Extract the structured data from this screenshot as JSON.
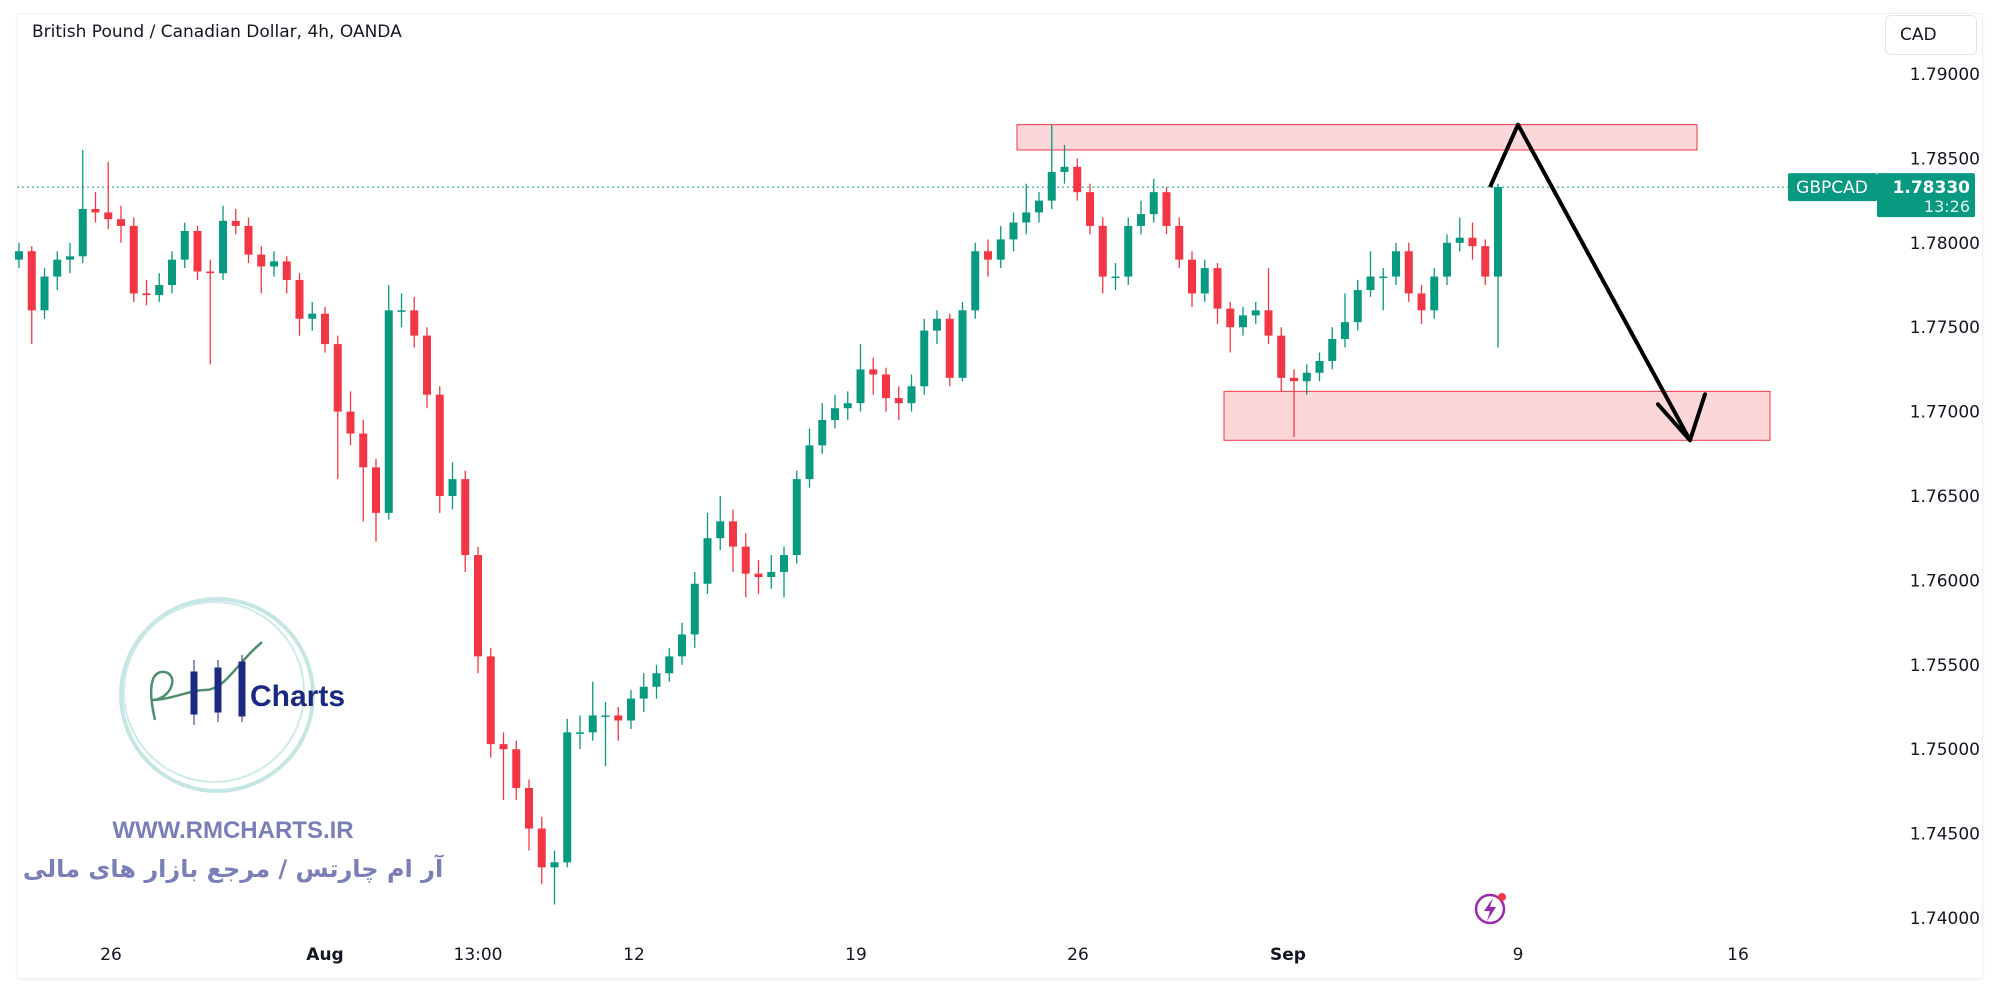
{
  "header": {
    "title": "British Pound / Canadian Dollar, 4h, OANDA",
    "currency_button": "CAD"
  },
  "price_badge": {
    "symbol": "GBPCAD",
    "price": "1.78330",
    "countdown": "13:26",
    "color": "#089981"
  },
  "watermark": {
    "logo_text": "RM Charts",
    "website": "WWW.RMCHARTS.IR",
    "tagline": "آر ام چارتس / مرجع بازار های مالی",
    "color": "#7b7fb8"
  },
  "icons": {
    "alert": "lightning-icon"
  },
  "chart_data": {
    "type": "candlestick",
    "title": "British Pound / Canadian Dollar, 4h, OANDA",
    "ylim": [
      1.7385,
      1.7925
    ],
    "yticks": [
      "1.79000",
      "1.78500",
      "1.78000",
      "1.77500",
      "1.77000",
      "1.76500",
      "1.76000",
      "1.75500",
      "1.75000",
      "1.74500",
      "1.74000"
    ],
    "xticks": [
      {
        "label": "26",
        "bold": false
      },
      {
        "label": "Aug",
        "bold": true
      },
      {
        "label": "13:00",
        "bold": false
      },
      {
        "label": "12",
        "bold": false
      },
      {
        "label": "19",
        "bold": false
      },
      {
        "label": "26",
        "bold": false
      },
      {
        "label": "Sep",
        "bold": true
      },
      {
        "label": "9",
        "bold": false
      },
      {
        "label": "16",
        "bold": false
      }
    ],
    "up_color": "#089981",
    "down_color": "#f23645",
    "last_price": 1.7833,
    "zones": [
      {
        "top": 1.787,
        "bottom": 1.7855
      },
      {
        "top": 1.7712,
        "bottom": 1.7683
      }
    ],
    "arrow_path_prices": [
      1.7833,
      1.787,
      1.7683
    ],
    "candles": [
      [
        1.779,
        1.78,
        1.7785,
        1.7795
      ],
      [
        1.7795,
        1.7798,
        1.774,
        1.776
      ],
      [
        1.776,
        1.7785,
        1.7755,
        1.778
      ],
      [
        1.778,
        1.7795,
        1.7772,
        1.779
      ],
      [
        1.779,
        1.78,
        1.7782,
        1.7792
      ],
      [
        1.7792,
        1.7855,
        1.7788,
        1.782
      ],
      [
        1.782,
        1.783,
        1.7812,
        1.7818
      ],
      [
        1.7818,
        1.7848,
        1.7808,
        1.7814
      ],
      [
        1.7814,
        1.7822,
        1.78,
        1.781
      ],
      [
        1.781,
        1.7815,
        1.7765,
        1.777
      ],
      [
        1.777,
        1.7778,
        1.7763,
        1.7769
      ],
      [
        1.7769,
        1.7782,
        1.7765,
        1.7775
      ],
      [
        1.7775,
        1.7795,
        1.777,
        1.779
      ],
      [
        1.779,
        1.7812,
        1.7785,
        1.7807
      ],
      [
        1.7807,
        1.781,
        1.7778,
        1.7783
      ],
      [
        1.7783,
        1.779,
        1.7728,
        1.7782
      ],
      [
        1.7782,
        1.7822,
        1.7778,
        1.7813
      ],
      [
        1.7813,
        1.782,
        1.7805,
        1.781
      ],
      [
        1.781,
        1.7815,
        1.7788,
        1.7793
      ],
      [
        1.7793,
        1.7798,
        1.777,
        1.7786
      ],
      [
        1.7786,
        1.7795,
        1.778,
        1.7789
      ],
      [
        1.7789,
        1.7792,
        1.777,
        1.7778
      ],
      [
        1.7778,
        1.7782,
        1.7745,
        1.7755
      ],
      [
        1.7755,
        1.7765,
        1.7748,
        1.7758
      ],
      [
        1.7758,
        1.7762,
        1.7735,
        1.774
      ],
      [
        1.774,
        1.7745,
        1.766,
        1.77
      ],
      [
        1.77,
        1.7712,
        1.768,
        1.7687
      ],
      [
        1.7687,
        1.7695,
        1.7635,
        1.7667
      ],
      [
        1.7667,
        1.7672,
        1.7623,
        1.764
      ],
      [
        1.764,
        1.7775,
        1.7636,
        1.776
      ],
      [
        1.776,
        1.777,
        1.775,
        1.776
      ],
      [
        1.776,
        1.7768,
        1.7738,
        1.7745
      ],
      [
        1.7745,
        1.775,
        1.7702,
        1.771
      ],
      [
        1.771,
        1.7715,
        1.764,
        1.765
      ],
      [
        1.765,
        1.767,
        1.7642,
        1.766
      ],
      [
        1.766,
        1.7665,
        1.7605,
        1.7615
      ],
      [
        1.7615,
        1.762,
        1.7545,
        1.7555
      ],
      [
        1.7555,
        1.756,
        1.7495,
        1.7503
      ],
      [
        1.7503,
        1.751,
        1.747,
        1.75
      ],
      [
        1.75,
        1.7505,
        1.747,
        1.7477
      ],
      [
        1.7477,
        1.7482,
        1.744,
        1.7453
      ],
      [
        1.7453,
        1.746,
        1.742,
        1.743
      ],
      [
        1.743,
        1.744,
        1.7408,
        1.7433
      ],
      [
        1.7433,
        1.7518,
        1.743,
        1.751
      ],
      [
        1.751,
        1.752,
        1.75,
        1.751
      ],
      [
        1.751,
        1.754,
        1.7505,
        1.752
      ],
      [
        1.752,
        1.7528,
        1.749,
        1.752
      ],
      [
        1.752,
        1.7525,
        1.7505,
        1.7517
      ],
      [
        1.7517,
        1.7535,
        1.7512,
        1.753
      ],
      [
        1.753,
        1.7545,
        1.7522,
        1.7537
      ],
      [
        1.7537,
        1.755,
        1.753,
        1.7545
      ],
      [
        1.7545,
        1.756,
        1.754,
        1.7555
      ],
      [
        1.7555,
        1.7575,
        1.755,
        1.7568
      ],
      [
        1.7568,
        1.7605,
        1.756,
        1.7598
      ],
      [
        1.7598,
        1.764,
        1.7592,
        1.7625
      ],
      [
        1.7625,
        1.765,
        1.7618,
        1.7635
      ],
      [
        1.7635,
        1.7642,
        1.7605,
        1.762
      ],
      [
        1.762,
        1.7628,
        1.759,
        1.7604
      ],
      [
        1.7604,
        1.7612,
        1.7592,
        1.7602
      ],
      [
        1.7602,
        1.7615,
        1.7595,
        1.7605
      ],
      [
        1.7605,
        1.762,
        1.759,
        1.7615
      ],
      [
        1.7615,
        1.7665,
        1.761,
        1.766
      ],
      [
        1.766,
        1.769,
        1.7655,
        1.768
      ],
      [
        1.768,
        1.7705,
        1.7675,
        1.7695
      ],
      [
        1.7695,
        1.771,
        1.769,
        1.7702
      ],
      [
        1.7702,
        1.7712,
        1.7695,
        1.7705
      ],
      [
        1.7705,
        1.774,
        1.77,
        1.7725
      ],
      [
        1.7725,
        1.7732,
        1.771,
        1.7722
      ],
      [
        1.7722,
        1.7726,
        1.77,
        1.7708
      ],
      [
        1.7708,
        1.7715,
        1.7695,
        1.7705
      ],
      [
        1.7705,
        1.7722,
        1.77,
        1.7715
      ],
      [
        1.7715,
        1.7755,
        1.771,
        1.7748
      ],
      [
        1.7748,
        1.776,
        1.774,
        1.7755
      ],
      [
        1.7755,
        1.7758,
        1.7715,
        1.772
      ],
      [
        1.772,
        1.7765,
        1.7718,
        1.776
      ],
      [
        1.776,
        1.78,
        1.7755,
        1.7795
      ],
      [
        1.7795,
        1.7802,
        1.778,
        1.779
      ],
      [
        1.779,
        1.781,
        1.7785,
        1.7802
      ],
      [
        1.7802,
        1.7818,
        1.7795,
        1.7812
      ],
      [
        1.7812,
        1.7835,
        1.7805,
        1.7818
      ],
      [
        1.7818,
        1.783,
        1.7812,
        1.7825
      ],
      [
        1.7825,
        1.787,
        1.782,
        1.7842
      ],
      [
        1.7842,
        1.7858,
        1.7835,
        1.7845
      ],
      [
        1.7845,
        1.785,
        1.7825,
        1.783
      ],
      [
        1.783,
        1.7835,
        1.7805,
        1.781
      ],
      [
        1.781,
        1.7815,
        1.777,
        1.778
      ],
      [
        1.778,
        1.7788,
        1.7772,
        1.778
      ],
      [
        1.778,
        1.7815,
        1.7775,
        1.781
      ],
      [
        1.781,
        1.7825,
        1.7805,
        1.7817
      ],
      [
        1.7817,
        1.7838,
        1.7812,
        1.783
      ],
      [
        1.783,
        1.7833,
        1.7805,
        1.781
      ],
      [
        1.781,
        1.7815,
        1.7785,
        1.779
      ],
      [
        1.779,
        1.7795,
        1.7762,
        1.777
      ],
      [
        1.777,
        1.779,
        1.7765,
        1.7785
      ],
      [
        1.7785,
        1.7788,
        1.7752,
        1.7761
      ],
      [
        1.7761,
        1.7765,
        1.7735,
        1.775
      ],
      [
        1.775,
        1.7762,
        1.7745,
        1.7757
      ],
      [
        1.7757,
        1.7765,
        1.7752,
        1.776
      ],
      [
        1.776,
        1.7785,
        1.774,
        1.7745
      ],
      [
        1.7745,
        1.775,
        1.7712,
        1.772
      ],
      [
        1.772,
        1.7725,
        1.7685,
        1.7718
      ],
      [
        1.7718,
        1.7728,
        1.771,
        1.7723
      ],
      [
        1.7723,
        1.7735,
        1.7718,
        1.773
      ],
      [
        1.773,
        1.775,
        1.7725,
        1.7743
      ],
      [
        1.7743,
        1.777,
        1.7738,
        1.7753
      ],
      [
        1.7753,
        1.7778,
        1.7748,
        1.7772
      ],
      [
        1.7772,
        1.7795,
        1.7768,
        1.778
      ],
      [
        1.778,
        1.7785,
        1.776,
        1.778
      ],
      [
        1.778,
        1.78,
        1.7775,
        1.7795
      ],
      [
        1.7795,
        1.78,
        1.7765,
        1.777
      ],
      [
        1.777,
        1.7775,
        1.7752,
        1.776
      ],
      [
        1.776,
        1.7785,
        1.7755,
        1.778
      ],
      [
        1.778,
        1.7805,
        1.7775,
        1.78
      ],
      [
        1.78,
        1.7815,
        1.7795,
        1.7803
      ],
      [
        1.7803,
        1.7812,
        1.779,
        1.7798
      ],
      [
        1.7798,
        1.7802,
        1.7775,
        1.778
      ],
      [
        1.778,
        1.7835,
        1.7738,
        1.7833
      ]
    ]
  }
}
